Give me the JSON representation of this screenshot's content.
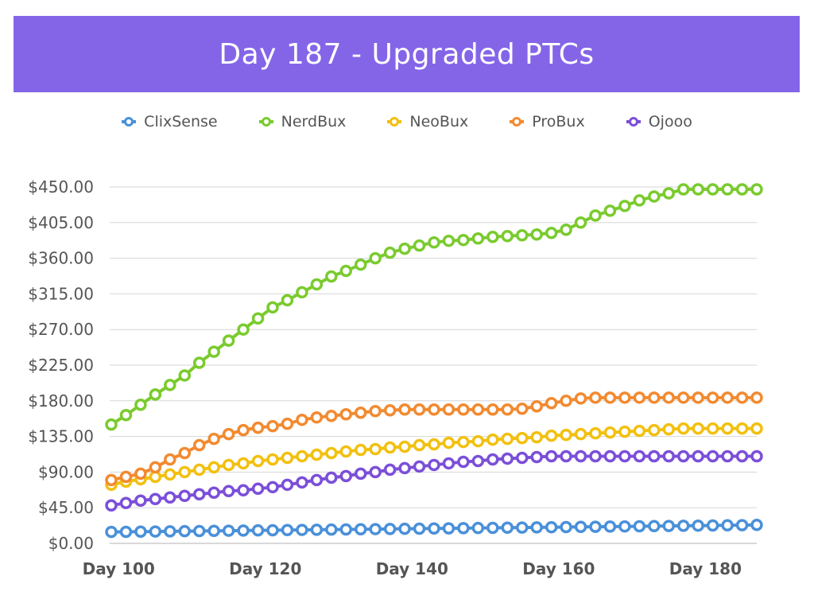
{
  "title": "Day 187 - Upgraded PTCs",
  "colors": {
    "banner": "#8465E8",
    "gridline": "#d6d6d6",
    "axis": "#b0b0b0"
  },
  "chart_data": {
    "type": "line",
    "title": "Day 187 - Upgraded PTCs",
    "xlabel": "",
    "ylabel": "",
    "xlim": [
      99,
      187
    ],
    "ylim": [
      0,
      450
    ],
    "y_ticks": [
      "$0.00",
      "$45.00",
      "$90.00",
      "$135.00",
      "$180.00",
      "$225.00",
      "$270.00",
      "$315.00",
      "$360.00",
      "$405.00",
      "$450.00"
    ],
    "x_ticks": [
      "Day 100",
      "Day 120",
      "Day 140",
      "Day 160",
      "Day 180"
    ],
    "x_tick_values": [
      100,
      120,
      140,
      160,
      180
    ],
    "grid": true,
    "legend_position": "top",
    "x": [
      99,
      101,
      103,
      105,
      107,
      109,
      111,
      113,
      115,
      117,
      119,
      121,
      123,
      125,
      127,
      129,
      131,
      133,
      135,
      137,
      139,
      141,
      143,
      145,
      147,
      149,
      151,
      153,
      155,
      157,
      159,
      161,
      163,
      165,
      167,
      169,
      171,
      173,
      175,
      177,
      179,
      181,
      183,
      185,
      187
    ],
    "series": [
      {
        "name": "ClixSense",
        "color": "#4A90D9",
        "values": [
          14.5,
          14.6,
          14.8,
          15,
          15.2,
          15.4,
          15.6,
          15.8,
          16,
          16.2,
          16.4,
          16.6,
          16.8,
          17,
          17.2,
          17.4,
          17.6,
          17.8,
          18,
          18.2,
          18.4,
          18.6,
          18.8,
          19,
          19.2,
          19.4,
          19.6,
          19.8,
          20,
          20.2,
          20.4,
          20.6,
          20.8,
          21,
          21.2,
          21.4,
          21.6,
          21.8,
          22,
          22.2,
          22.4,
          22.6,
          22.8,
          23,
          23.3
        ]
      },
      {
        "name": "NerdBux",
        "color": "#7ACB2E",
        "values": [
          150,
          162,
          175,
          188,
          200,
          212,
          228,
          242,
          256,
          270,
          284,
          298,
          307,
          317,
          327,
          337,
          344,
          352,
          360,
          367,
          372,
          376,
          380,
          382,
          383,
          385,
          387,
          388,
          389,
          390,
          392,
          396,
          405,
          414,
          420,
          426,
          433,
          438,
          442,
          447,
          447,
          447,
          447,
          447,
          447
        ]
      },
      {
        "name": "NeoBux",
        "color": "#F2C00F",
        "values": [
          74,
          78,
          81,
          84,
          87,
          90,
          93,
          96,
          99,
          101,
          104,
          106,
          108,
          110,
          112,
          114,
          116,
          118,
          119,
          121,
          122,
          124,
          125,
          127,
          128,
          129,
          131,
          132,
          133,
          134,
          136,
          137,
          138,
          139,
          140,
          141,
          142,
          143,
          144,
          145,
          145,
          145,
          145,
          145,
          145
        ]
      },
      {
        "name": "ProBux",
        "color": "#F28A30",
        "values": [
          80,
          84,
          88,
          96,
          106,
          114,
          124,
          132,
          138,
          143,
          146,
          148,
          151,
          156,
          159,
          161,
          163,
          165,
          167,
          168,
          169,
          169,
          169,
          169,
          169,
          169,
          169,
          169,
          170,
          173,
          177,
          180,
          183,
          184,
          184,
          184,
          184,
          184,
          184,
          184,
          184,
          184,
          184,
          184,
          184
        ]
      },
      {
        "name": "Ojooo",
        "color": "#7B4FD9",
        "values": [
          48,
          51,
          54,
          56,
          58,
          60,
          62,
          64,
          66,
          67,
          69,
          71,
          74,
          77,
          80,
          83,
          85,
          88,
          90,
          93,
          95,
          97,
          99,
          101,
          103,
          104,
          106,
          107,
          108,
          109,
          110,
          110,
          110,
          110,
          110,
          110,
          110,
          110,
          110,
          110,
          110,
          110,
          110,
          110,
          110
        ]
      }
    ]
  }
}
